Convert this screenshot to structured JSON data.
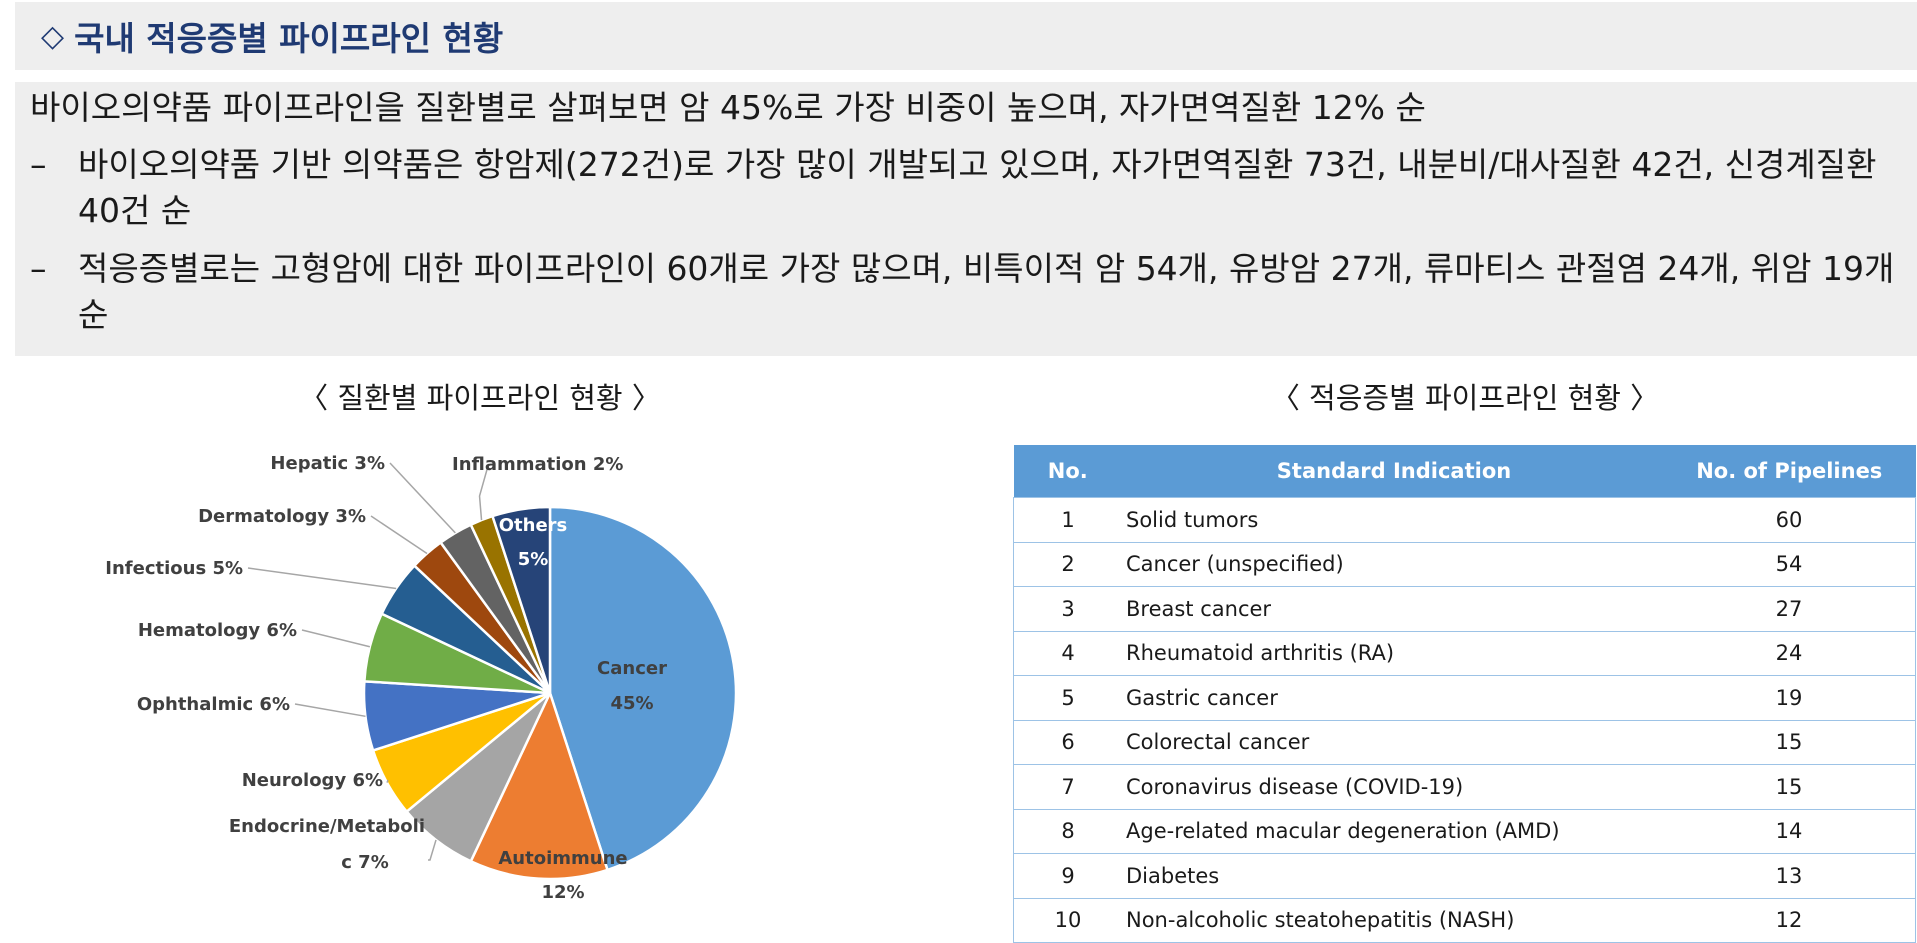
{
  "header": {
    "icon": "diamond-outline-icon",
    "title": "국내 적응증별 파이프라인 현황"
  },
  "summary": {
    "lead": "바이오의약품 파이프라인을 질환별로 살펴보면 암 45%로 가장 비중이 높으며, 자가면역질환 12% 순",
    "bullets": [
      {
        "dash": "–",
        "text": "바이오의약품 기반 의약품은 항암제(272건)로 가장 많이 개발되고 있으며, 자가면역질환 73건, 내분비/대사질환 42건, 신경계질환 40건 순"
      },
      {
        "dash": "–",
        "text": "적응증별로는 고형암에 대한 파이프라인이 60개로 가장 많으며, 비특이적 암 54개, 유방암 27개, 류마티스 관절염 24개, 위암 19개 순"
      }
    ]
  },
  "chart_data": [
    {
      "type": "pie",
      "title": "〈 질환별 파이프라인 현황 〉",
      "slices": [
        {
          "label": "Cancer",
          "value": 45,
          "pct": "45%",
          "color": "#5b9bd5"
        },
        {
          "label": "Autoimmune",
          "value": 12,
          "pct": "12%",
          "color": "#ed7d31"
        },
        {
          "label": "Endocrine/Metabolic",
          "label_lines": [
            "Endocrine/Metaboli",
            "c 7%"
          ],
          "value": 7,
          "pct": "7%",
          "color": "#a5a5a5"
        },
        {
          "label": "Neurology",
          "value": 6,
          "pct": "6%",
          "color": "#ffc000"
        },
        {
          "label": "Ophthalmic",
          "value": 6,
          "pct": "6%",
          "color": "#4472c4"
        },
        {
          "label": "Hematology",
          "value": 6,
          "pct": "6%",
          "color": "#70ad47"
        },
        {
          "label": "Infectious",
          "value": 5,
          "pct": "5%",
          "color": "#255e91"
        },
        {
          "label": "Dermatology",
          "value": 3,
          "pct": "3%",
          "color": "#9e480e"
        },
        {
          "label": "Hepatic",
          "value": 3,
          "pct": "3%",
          "color": "#636363"
        },
        {
          "label": "Inflammation",
          "value": 2,
          "pct": "2%",
          "color": "#997300"
        },
        {
          "label": "Others",
          "value": 5,
          "pct": "5%",
          "color": "#264478"
        }
      ]
    },
    {
      "type": "table",
      "title": "〈 적응증별 파이프라인 현황 〉",
      "columns": [
        "No.",
        "Standard Indication",
        "No. of Pipelines"
      ],
      "rows": [
        [
          "1",
          "Solid tumors",
          "60"
        ],
        [
          "2",
          "Cancer (unspecified)",
          "54"
        ],
        [
          "3",
          "Breast cancer",
          "27"
        ],
        [
          "4",
          "Rheumatoid arthritis (RA)",
          "24"
        ],
        [
          "5",
          "Gastric cancer",
          "19"
        ],
        [
          "6",
          "Colorectal cancer",
          "15"
        ],
        [
          "7",
          "Coronavirus disease (COVID-19)",
          "15"
        ],
        [
          "8",
          "Age-related macular degeneration (AMD)",
          "14"
        ],
        [
          "9",
          "Diabetes",
          "13"
        ],
        [
          "10",
          "Non-alcoholic steatohepatitis (NASH)",
          "12"
        ]
      ]
    }
  ]
}
